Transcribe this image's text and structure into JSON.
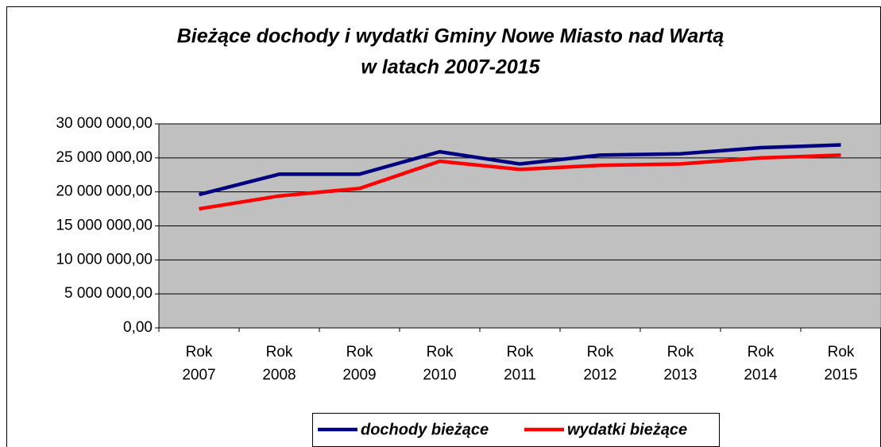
{
  "chart_data": {
    "type": "line",
    "title": [
      "Bieżące dochody i wydatki Gminy Nowe Miasto nad Wartą",
      "w latach 2007-2015"
    ],
    "categories": [
      "Rok 2007",
      "Rok 2008",
      "Rok 2009",
      "Rok 2010",
      "Rok 2011",
      "Rok 2012",
      "Rok 2013",
      "Rok 2014",
      "Rok 2015"
    ],
    "series": [
      {
        "name": "dochody bieżące",
        "color": "#000080",
        "values": [
          19600000,
          22600000,
          22600000,
          25900000,
          24100000,
          25400000,
          25600000,
          26500000,
          26900000
        ]
      },
      {
        "name": "wydatki bieżące",
        "color": "#ff0000",
        "values": [
          17500000,
          19400000,
          20500000,
          24500000,
          23300000,
          23900000,
          24100000,
          25000000,
          25400000
        ]
      }
    ],
    "ylim": [
      0,
      30000000
    ],
    "yticks": [
      {
        "value": 0,
        "label": "0,00"
      },
      {
        "value": 5000000,
        "label": "5 000 000,00"
      },
      {
        "value": 10000000,
        "label": "10 000 000,00"
      },
      {
        "value": 15000000,
        "label": "15 000 000,00"
      },
      {
        "value": 20000000,
        "label": "20 000 000,00"
      },
      {
        "value": 25000000,
        "label": "25 000 000,00"
      },
      {
        "value": 30000000,
        "label": "30 000 000,00"
      }
    ],
    "grid": true,
    "legend": "bottom",
    "plot_background": "#c0c0c0"
  }
}
